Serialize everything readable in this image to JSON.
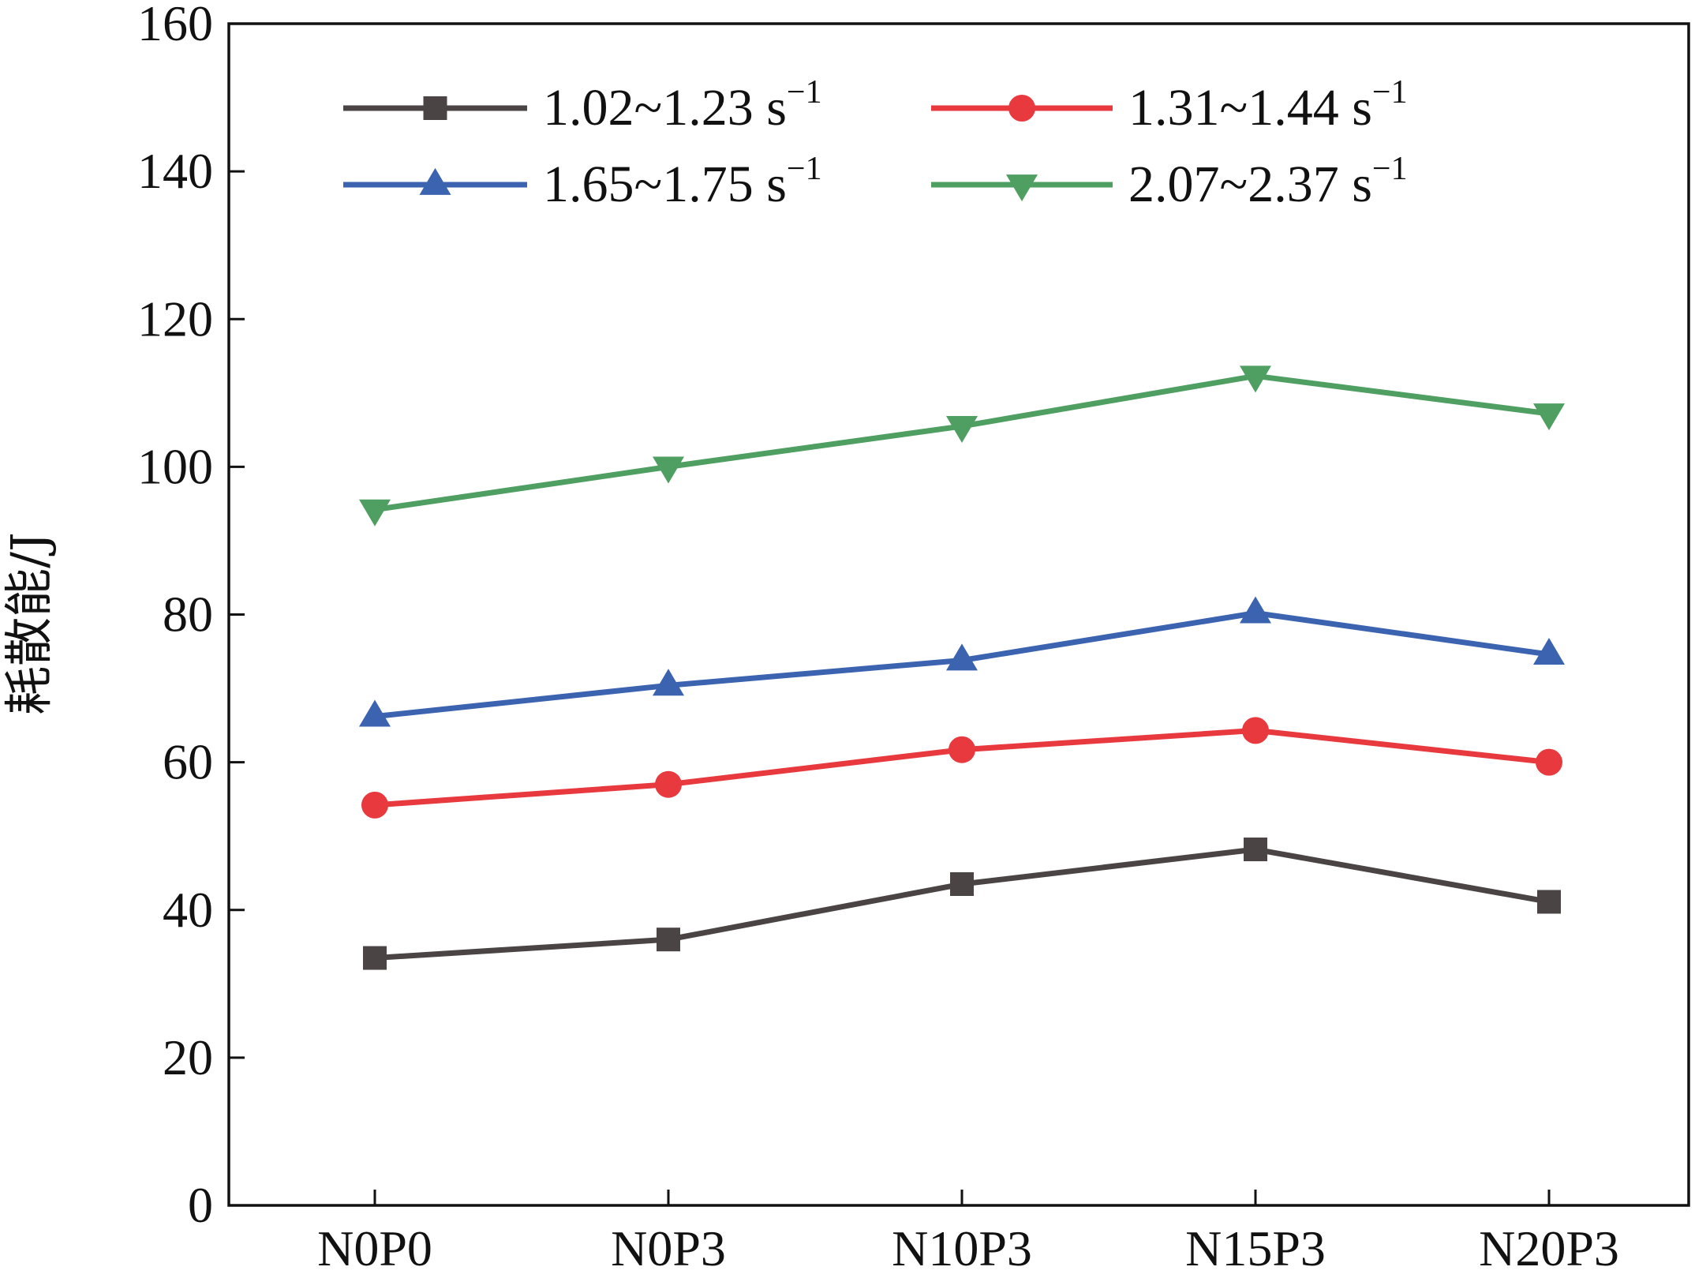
{
  "chart_data": {
    "type": "line",
    "title": "",
    "xlabel": "",
    "ylabel": "耗散能/J",
    "categories": [
      "N0P0",
      "N0P3",
      "N10P3",
      "N15P3",
      "N20P3"
    ],
    "ylim": [
      0,
      160
    ],
    "yticks": [
      0,
      20,
      40,
      60,
      80,
      100,
      120,
      140,
      160
    ],
    "grid": false,
    "legend_position": "top",
    "series": [
      {
        "name": "1.02~1.23 s",
        "name_superscript": "−1",
        "marker": "square",
        "color": "#4a4444",
        "values": [
          33.5,
          36.0,
          43.5,
          48.2,
          41.1
        ]
      },
      {
        "name": "1.31~1.44 s",
        "name_superscript": "−1",
        "marker": "circle",
        "color": "#e8393f",
        "values": [
          54.2,
          57.0,
          61.7,
          64.3,
          60.0
        ]
      },
      {
        "name": "1.65~1.75 s",
        "name_superscript": "−1",
        "marker": "triangle-up",
        "color": "#3b63b0",
        "values": [
          66.2,
          70.4,
          73.8,
          80.2,
          74.6
        ]
      },
      {
        "name": "2.07~2.37 s",
        "name_superscript": "−1",
        "marker": "triangle-down",
        "color": "#4f9e62",
        "values": [
          94.2,
          100.0,
          105.5,
          112.3,
          107.2
        ]
      }
    ]
  }
}
